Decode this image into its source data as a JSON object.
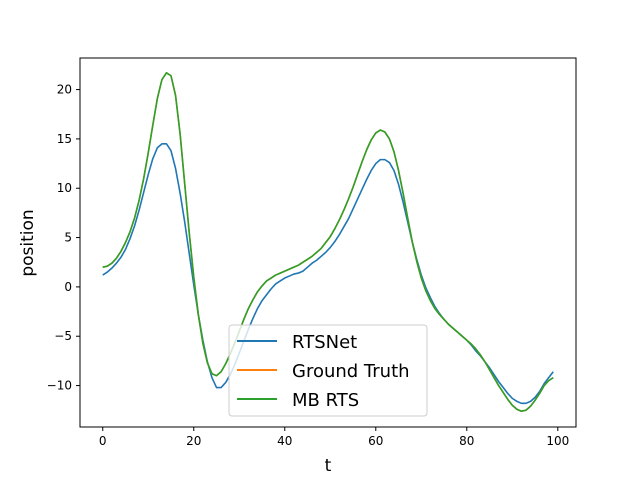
{
  "chart_data": {
    "type": "line",
    "title": "",
    "xlabel": "t",
    "ylabel": "position",
    "xlim": [
      -5,
      104
    ],
    "ylim": [
      -14.2,
      23.2
    ],
    "xticks": [
      0,
      20,
      40,
      60,
      80,
      100
    ],
    "yticks": [
      -10,
      -5,
      0,
      5,
      10,
      15,
      20
    ],
    "grid": false,
    "legend_position": "lower-center",
    "x": [
      0,
      1,
      2,
      3,
      4,
      5,
      6,
      7,
      8,
      9,
      10,
      11,
      12,
      13,
      14,
      15,
      16,
      17,
      18,
      19,
      20,
      21,
      22,
      23,
      24,
      25,
      26,
      27,
      28,
      29,
      30,
      31,
      32,
      33,
      34,
      35,
      36,
      37,
      38,
      39,
      40,
      41,
      42,
      43,
      44,
      45,
      46,
      47,
      48,
      49,
      50,
      51,
      52,
      53,
      54,
      55,
      56,
      57,
      58,
      59,
      60,
      61,
      62,
      63,
      64,
      65,
      66,
      67,
      68,
      69,
      70,
      71,
      72,
      73,
      74,
      75,
      76,
      77,
      78,
      79,
      80,
      81,
      82,
      83,
      84,
      85,
      86,
      87,
      88,
      89,
      90,
      91,
      92,
      93,
      94,
      95,
      96,
      97,
      98,
      99
    ],
    "series": [
      {
        "name": "RTSNet",
        "color": "#1f77b4",
        "values": [
          1.2,
          1.5,
          1.9,
          2.4,
          3.0,
          3.8,
          4.9,
          6.2,
          7.8,
          9.6,
          11.4,
          13.0,
          14.1,
          14.5,
          14.5,
          13.8,
          12.0,
          9.5,
          6.6,
          3.4,
          0.2,
          -2.8,
          -5.4,
          -7.6,
          -9.2,
          -10.2,
          -10.2,
          -9.7,
          -8.9,
          -7.9,
          -6.7,
          -5.5,
          -4.3,
          -3.2,
          -2.2,
          -1.4,
          -0.8,
          -0.2,
          0.3,
          0.6,
          0.9,
          1.1,
          1.3,
          1.4,
          1.6,
          2.0,
          2.4,
          2.7,
          3.1,
          3.5,
          4.0,
          4.6,
          5.3,
          6.1,
          6.9,
          7.9,
          8.9,
          9.9,
          10.9,
          11.8,
          12.5,
          12.9,
          12.9,
          12.6,
          11.8,
          10.4,
          8.6,
          6.6,
          4.6,
          2.8,
          1.2,
          -0.1,
          -1.1,
          -2.0,
          -2.7,
          -3.3,
          -3.8,
          -4.2,
          -4.6,
          -5.0,
          -5.4,
          -5.9,
          -6.5,
          -7.0,
          -7.6,
          -8.2,
          -8.9,
          -9.6,
          -10.2,
          -10.8,
          -11.3,
          -11.6,
          -11.8,
          -11.8,
          -11.6,
          -11.2,
          -10.6,
          -9.8,
          -9.2,
          -8.6
        ]
      },
      {
        "name": "Ground Truth",
        "color": "#ff7f0e",
        "values": [
          2.0,
          2.1,
          2.4,
          2.9,
          3.6,
          4.5,
          5.6,
          7.0,
          8.8,
          11.0,
          13.6,
          16.4,
          19.1,
          21.0,
          21.7,
          21.4,
          19.4,
          15.5,
          10.5,
          5.5,
          1.0,
          -2.8,
          -5.7,
          -7.7,
          -8.8,
          -9.0,
          -8.6,
          -7.8,
          -6.8,
          -5.7,
          -4.5,
          -3.3,
          -2.2,
          -1.3,
          -0.5,
          0.1,
          0.6,
          0.9,
          1.2,
          1.4,
          1.6,
          1.8,
          2.0,
          2.2,
          2.5,
          2.8,
          3.1,
          3.5,
          3.9,
          4.5,
          5.1,
          5.9,
          6.8,
          7.8,
          8.9,
          10.1,
          11.4,
          12.7,
          13.9,
          14.9,
          15.6,
          15.9,
          15.7,
          15.0,
          13.7,
          11.8,
          9.5,
          7.0,
          4.6,
          2.6,
          0.9,
          -0.4,
          -1.4,
          -2.2,
          -2.8,
          -3.3,
          -3.8,
          -4.2,
          -4.6,
          -5.0,
          -5.4,
          -5.8,
          -6.3,
          -6.9,
          -7.6,
          -8.4,
          -9.2,
          -10.0,
          -10.7,
          -11.4,
          -12.0,
          -12.4,
          -12.6,
          -12.5,
          -12.1,
          -11.5,
          -10.8,
          -10.0,
          -9.5,
          -9.2
        ]
      },
      {
        "name": "MB RTS",
        "color": "#2ca02c",
        "values": [
          2.0,
          2.1,
          2.4,
          2.9,
          3.6,
          4.5,
          5.6,
          7.0,
          8.8,
          11.0,
          13.6,
          16.4,
          19.1,
          21.0,
          21.7,
          21.4,
          19.4,
          15.5,
          10.5,
          5.5,
          1.0,
          -2.8,
          -5.7,
          -7.7,
          -8.8,
          -9.0,
          -8.6,
          -7.8,
          -6.8,
          -5.7,
          -4.5,
          -3.3,
          -2.2,
          -1.3,
          -0.5,
          0.1,
          0.6,
          0.9,
          1.2,
          1.4,
          1.6,
          1.8,
          2.0,
          2.2,
          2.5,
          2.8,
          3.1,
          3.5,
          3.9,
          4.5,
          5.1,
          5.9,
          6.8,
          7.8,
          8.9,
          10.1,
          11.4,
          12.7,
          13.9,
          14.9,
          15.6,
          15.9,
          15.7,
          15.0,
          13.7,
          11.8,
          9.5,
          7.0,
          4.6,
          2.6,
          0.9,
          -0.4,
          -1.4,
          -2.2,
          -2.8,
          -3.3,
          -3.8,
          -4.2,
          -4.6,
          -5.0,
          -5.4,
          -5.8,
          -6.3,
          -6.9,
          -7.6,
          -8.4,
          -9.2,
          -10.0,
          -10.7,
          -11.4,
          -12.0,
          -12.4,
          -12.6,
          -12.5,
          -12.1,
          -11.5,
          -10.8,
          -10.0,
          -9.5,
          -9.2
        ]
      }
    ]
  }
}
